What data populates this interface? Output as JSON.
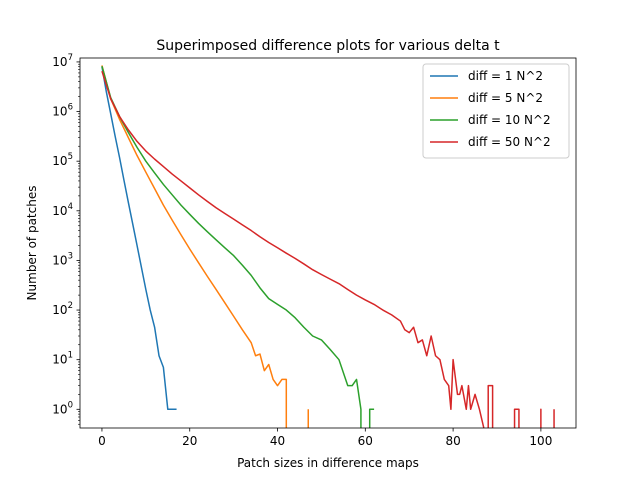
{
  "chart_data": {
    "type": "line",
    "title": "Superimposed difference plots for various delta t",
    "xlabel": "Patch sizes in difference maps",
    "ylabel": "Number of patches",
    "xlim": [
      -5,
      108
    ],
    "ylim": [
      0.42,
      12000000
    ],
    "yscale": "log",
    "x_ticks": [
      0,
      20,
      40,
      60,
      80,
      100
    ],
    "x_tick_labels": [
      "0",
      "20",
      "40",
      "60",
      "80",
      "100"
    ],
    "y_ticks": [
      1,
      10,
      100,
      1000,
      10000,
      100000,
      1000000,
      10000000
    ],
    "y_tick_labels": [
      {
        "base": "10",
        "exp": "0"
      },
      {
        "base": "10",
        "exp": "1"
      },
      {
        "base": "10",
        "exp": "2"
      },
      {
        "base": "10",
        "exp": "3"
      },
      {
        "base": "10",
        "exp": "4"
      },
      {
        "base": "10",
        "exp": "5"
      },
      {
        "base": "10",
        "exp": "6"
      },
      {
        "base": "10",
        "exp": "7"
      }
    ],
    "grid": false,
    "legend_position": "top-right",
    "series": [
      {
        "name": "diff = 1 N^2",
        "color": "#1f77b4",
        "points": [
          [
            0,
            8000000
          ],
          [
            1,
            2500000
          ],
          [
            2,
            900000
          ],
          [
            3,
            320000
          ],
          [
            4,
            120000
          ],
          [
            5,
            42000
          ],
          [
            6,
            15000
          ],
          [
            7,
            5500
          ],
          [
            8,
            2000
          ],
          [
            9,
            720
          ],
          [
            10,
            260
          ],
          [
            11,
            100
          ],
          [
            12,
            45
          ],
          [
            13,
            12
          ],
          [
            14,
            7
          ],
          [
            15,
            1
          ],
          [
            16,
            1
          ],
          [
            17,
            1
          ]
        ]
      },
      {
        "name": "diff = 5 N^2",
        "color": "#ff7f0e",
        "points": [
          [
            0,
            8500000
          ],
          [
            2,
            1800000
          ],
          [
            4,
            700000
          ],
          [
            6,
            300000
          ],
          [
            8,
            130000
          ],
          [
            10,
            60000
          ],
          [
            12,
            28000
          ],
          [
            14,
            13000
          ],
          [
            16,
            6500
          ],
          [
            18,
            3300
          ],
          [
            20,
            1700
          ],
          [
            22,
            900
          ],
          [
            24,
            480
          ],
          [
            26,
            260
          ],
          [
            28,
            140
          ],
          [
            30,
            75
          ],
          [
            32,
            40
          ],
          [
            34,
            22
          ],
          [
            35,
            12
          ],
          [
            36,
            13
          ],
          [
            37,
            6
          ],
          [
            38,
            8
          ],
          [
            39,
            4
          ],
          [
            40,
            3
          ],
          [
            41,
            4
          ],
          [
            42,
            4
          ],
          [
            42,
            0.42
          ],
          null,
          [
            47,
            0.42
          ],
          [
            47,
            1
          ]
        ]
      },
      {
        "name": "diff = 10 N^2",
        "color": "#2ca02c",
        "points": [
          [
            0,
            8200000
          ],
          [
            2,
            1900000
          ],
          [
            4,
            800000
          ],
          [
            6,
            380000
          ],
          [
            8,
            190000
          ],
          [
            10,
            100000
          ],
          [
            12,
            58000
          ],
          [
            14,
            34000
          ],
          [
            16,
            21000
          ],
          [
            18,
            13000
          ],
          [
            20,
            8500
          ],
          [
            22,
            5600
          ],
          [
            24,
            3800
          ],
          [
            26,
            2600
          ],
          [
            28,
            1800
          ],
          [
            30,
            1250
          ],
          [
            32,
            800
          ],
          [
            34,
            500
          ],
          [
            36,
            280
          ],
          [
            38,
            170
          ],
          [
            40,
            130
          ],
          [
            42,
            100
          ],
          [
            44,
            70
          ],
          [
            46,
            45
          ],
          [
            48,
            30
          ],
          [
            50,
            25
          ],
          [
            52,
            16
          ],
          [
            54,
            10
          ],
          [
            56,
            3
          ],
          [
            57,
            3
          ],
          [
            58,
            4
          ],
          [
            59,
            1
          ],
          [
            59,
            0.42
          ],
          null,
          [
            61,
            0.42
          ],
          [
            61,
            1
          ],
          [
            62,
            1
          ]
        ]
      },
      {
        "name": "diff = 50 N^2",
        "color": "#d62728",
        "points": [
          [
            0,
            6500000
          ],
          [
            2,
            1800000
          ],
          [
            4,
            800000
          ],
          [
            6,
            430000
          ],
          [
            8,
            250000
          ],
          [
            10,
            160000
          ],
          [
            12,
            110000
          ],
          [
            14,
            78000
          ],
          [
            16,
            55000
          ],
          [
            18,
            40000
          ],
          [
            20,
            29000
          ],
          [
            22,
            21000
          ],
          [
            24,
            15500
          ],
          [
            26,
            11500
          ],
          [
            28,
            8800
          ],
          [
            30,
            6800
          ],
          [
            32,
            5200
          ],
          [
            34,
            4000
          ],
          [
            36,
            3000
          ],
          [
            38,
            2300
          ],
          [
            40,
            1800
          ],
          [
            42,
            1400
          ],
          [
            44,
            1100
          ],
          [
            46,
            850
          ],
          [
            48,
            650
          ],
          [
            50,
            520
          ],
          [
            52,
            420
          ],
          [
            54,
            340
          ],
          [
            56,
            260
          ],
          [
            58,
            200
          ],
          [
            60,
            160
          ],
          [
            62,
            130
          ],
          [
            64,
            100
          ],
          [
            66,
            80
          ],
          [
            68,
            60
          ],
          [
            69,
            40
          ],
          [
            70,
            35
          ],
          [
            71,
            45
          ],
          [
            72,
            22
          ],
          [
            73,
            25
          ],
          [
            74,
            12
          ],
          [
            75,
            30
          ],
          [
            76,
            12
          ],
          [
            77,
            10
          ],
          [
            78,
            4
          ],
          [
            79,
            3
          ],
          [
            79.5,
            1
          ],
          [
            80,
            10
          ],
          [
            81,
            2
          ],
          [
            81.5,
            2
          ],
          [
            82,
            3
          ],
          [
            83,
            1
          ],
          [
            83.5,
            3
          ],
          [
            84,
            1
          ],
          [
            85,
            2
          ],
          [
            86,
            1
          ],
          [
            87,
            0.42
          ],
          null,
          [
            88,
            0.42
          ],
          [
            88,
            3
          ],
          [
            89,
            3
          ],
          [
            89,
            0.42
          ],
          null,
          [
            94,
            0.42
          ],
          [
            94,
            1
          ],
          [
            95,
            1
          ],
          [
            95,
            0.42
          ],
          null,
          [
            100,
            0.42
          ],
          [
            100,
            1
          ],
          [
            100,
            0.42
          ],
          null,
          [
            103,
            0.42
          ],
          [
            103,
            1
          ]
        ]
      }
    ]
  }
}
